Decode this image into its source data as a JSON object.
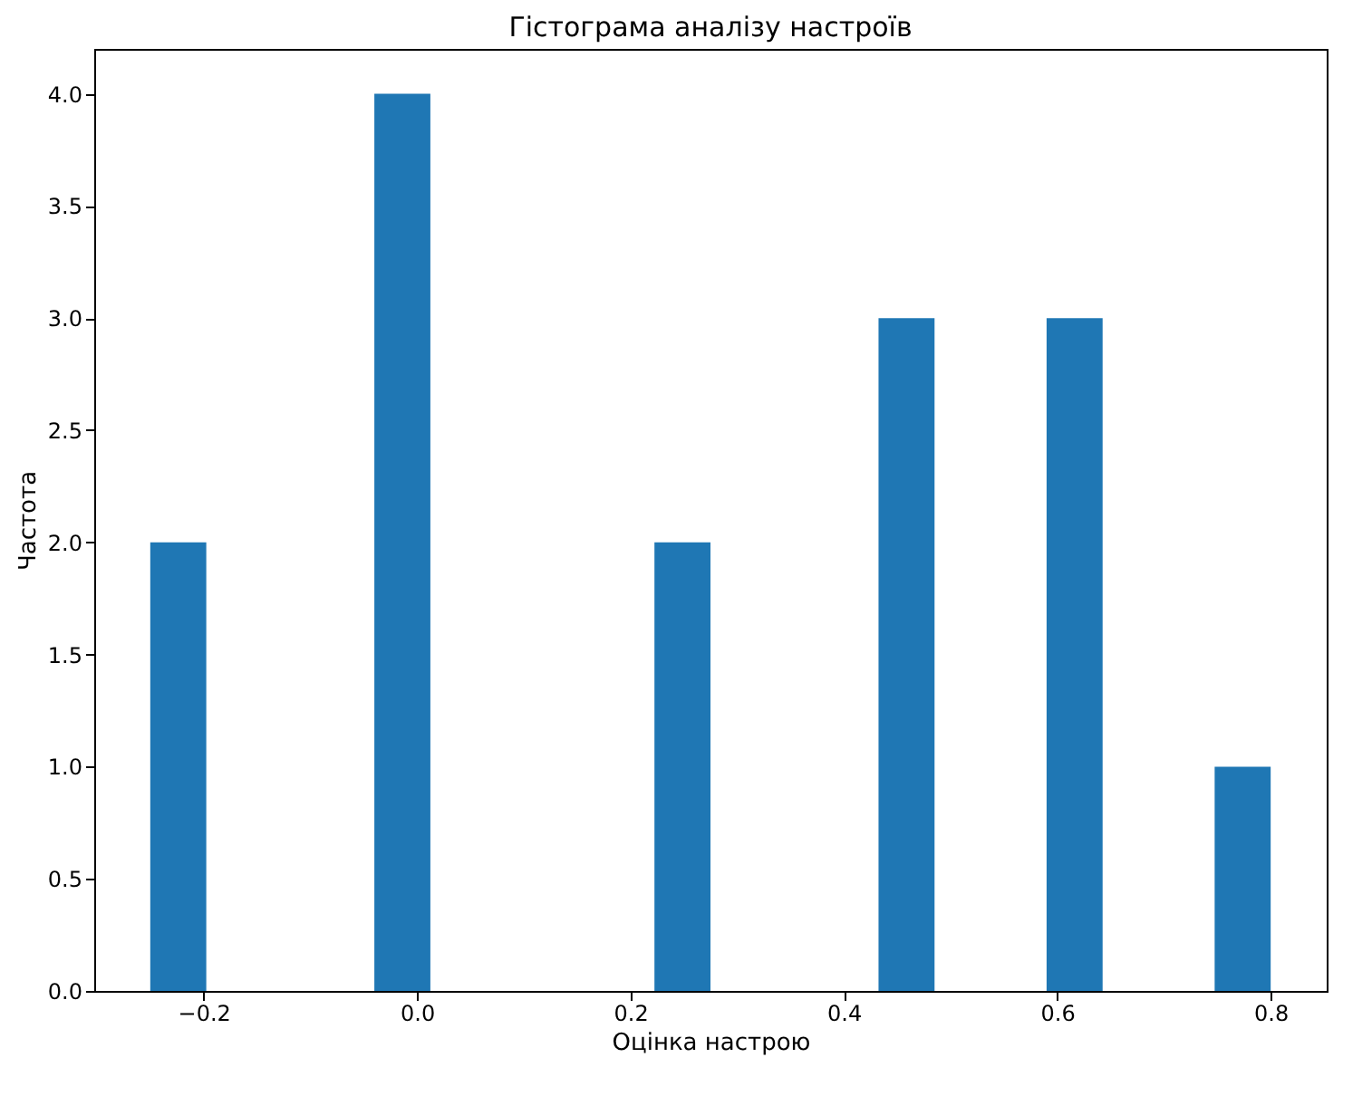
{
  "chart_data": {
    "type": "histogram",
    "title": "Гістограма аналізу настроїв",
    "xlabel": "Оцінка настрою",
    "ylabel": "Частота",
    "bins": [
      -0.25,
      -0.1975,
      -0.145,
      -0.0925,
      -0.04,
      0.0125,
      0.065,
      0.1175,
      0.17,
      0.2225,
      0.275,
      0.3275,
      0.38,
      0.4325,
      0.485,
      0.5375,
      0.59,
      0.6425,
      0.695,
      0.7475,
      0.8
    ],
    "values": [
      2,
      0,
      0,
      0,
      4,
      0,
      0,
      0,
      0,
      2,
      0,
      0,
      0,
      3,
      0,
      0,
      3,
      0,
      0,
      1
    ],
    "color": "#1f77b4",
    "xlim": [
      -0.3025,
      0.8525
    ],
    "xticks": [
      {
        "value": -0.2,
        "label": "−0.2"
      },
      {
        "value": 0.0,
        "label": "0.0"
      },
      {
        "value": 0.2,
        "label": "0.2"
      },
      {
        "value": 0.4,
        "label": "0.4"
      },
      {
        "value": 0.6,
        "label": "0.6"
      },
      {
        "value": 0.8,
        "label": "0.8"
      }
    ],
    "ylim": [
      0,
      4.2
    ],
    "yticks": [
      {
        "value": 0,
        "label": "0.0"
      },
      {
        "value": 0.5,
        "label": "0.5"
      },
      {
        "value": 1,
        "label": "1.0"
      },
      {
        "value": 1.5,
        "label": "1.5"
      },
      {
        "value": 2,
        "label": "2.0"
      },
      {
        "value": 2.5,
        "label": "2.5"
      },
      {
        "value": 3,
        "label": "3.0"
      },
      {
        "value": 3.5,
        "label": "3.5"
      },
      {
        "value": 4,
        "label": "4.0"
      }
    ],
    "grid": false
  }
}
